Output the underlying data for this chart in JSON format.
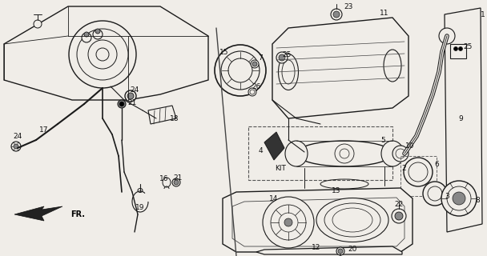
{
  "bg_color": "#f0ede8",
  "fig_width": 6.08,
  "fig_height": 3.2,
  "dpi": 100,
  "line_color": "#1a1a1a",
  "text_color": "#111111",
  "font_size": 6.5,
  "gray": "#888888",
  "darkgray": "#444444",
  "lightgray": "#cccccc"
}
